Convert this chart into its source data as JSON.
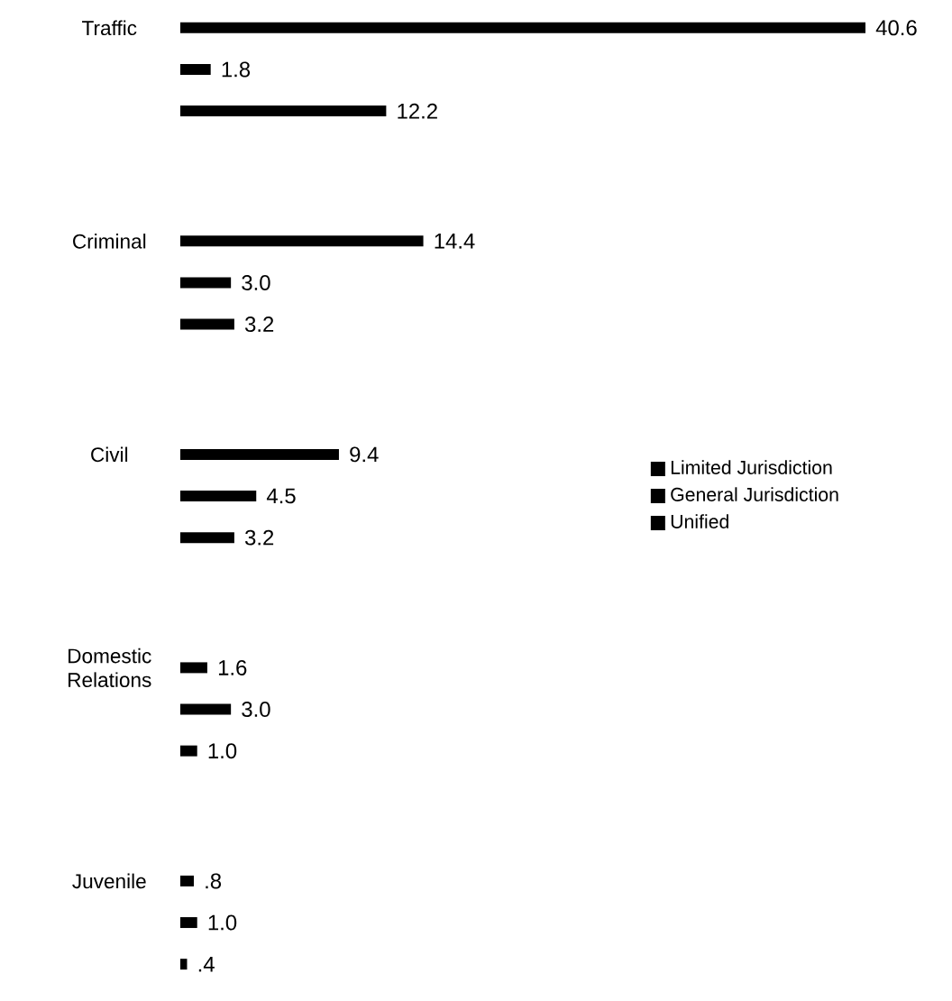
{
  "chart_data": {
    "type": "bar",
    "orientation": "horizontal",
    "categories": [
      "Traffic",
      "Criminal",
      "Civil",
      "Domestic Relations",
      "Juvenile"
    ],
    "series": [
      {
        "name": "Limited Jurisdiction",
        "color": "#000000",
        "values": [
          40.6,
          14.4,
          9.4,
          1.6,
          0.8
        ],
        "value_labels": [
          "40.6",
          "14.4",
          "9.4",
          "1.6",
          ".8"
        ]
      },
      {
        "name": "General Jurisdiction",
        "color": "#000000",
        "values": [
          1.8,
          3.0,
          4.5,
          3.0,
          1.0
        ],
        "value_labels": [
          "1.8",
          "3.0",
          "4.5",
          "3.0",
          "1.0"
        ]
      },
      {
        "name": "Unified",
        "color": "#000000",
        "values": [
          12.2,
          3.2,
          3.2,
          1.0,
          0.4
        ],
        "value_labels": [
          "12.2",
          "3.2",
          "3.2",
          "1.0",
          ".4"
        ]
      }
    ],
    "legend": "right"
  }
}
